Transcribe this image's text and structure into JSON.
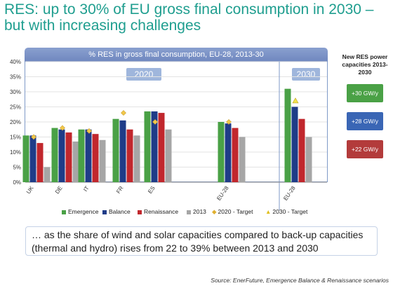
{
  "slide_title": "RES: up to 30% of EU gross final consumption in 2030 – but with increasing challenges",
  "chart_data": {
    "type": "bar",
    "title": "% RES in gross final consumption, EU-28, 2013-30",
    "group_labels": [
      "2020",
      "2030"
    ],
    "categories": [
      "UK",
      "DE",
      "IT",
      "FR",
      "ES",
      "EU-28",
      "EU-28"
    ],
    "series": [
      {
        "name": "Emergence",
        "color": "#4aa146",
        "values": [
          15.5,
          18,
          17.5,
          21,
          23.5,
          20,
          31
        ]
      },
      {
        "name": "Balance",
        "color": "#1f3c88",
        "values": [
          15.5,
          17.5,
          17.5,
          20.5,
          23.5,
          19.5,
          25
        ]
      },
      {
        "name": "Renaissance",
        "color": "#c1272d",
        "values": [
          13,
          16.5,
          16,
          17.5,
          23,
          18,
          21
        ]
      },
      {
        "name": "2013",
        "color": "#a6a6a6",
        "values": [
          5,
          13.5,
          14,
          15.5,
          17.5,
          15,
          15
        ]
      }
    ],
    "markers": [
      {
        "name": "2020 - Target",
        "color": "#f2c84b",
        "values": [
          15,
          18,
          17,
          23,
          20,
          20,
          null
        ]
      },
      {
        "name": "2030 - Target",
        "color": "#f2e24b",
        "values": [
          null,
          null,
          null,
          null,
          null,
          null,
          27
        ]
      }
    ],
    "yticks": [
      "0%",
      "5%",
      "10%",
      "15%",
      "20%",
      "25%",
      "30%",
      "35%",
      "40%"
    ],
    "ylim": [
      0,
      40
    ]
  },
  "side_panel": {
    "title": "New RES power capacities 2013-2030",
    "boxes": [
      "+30 GW/y",
      "+28 GW/y",
      "+22 GW/y"
    ]
  },
  "legend": [
    "Emergence",
    "Balance",
    "Renaissance",
    "2013",
    "2020 - Target",
    "2030 - Target"
  ],
  "callout": "… as the share of wind and solar capacities compared to back-up capacities (thermal and hydro) rises from 22 to 39% between 2013 and 2030",
  "source": "Source: EnerFuture, Emergence Balance & Renaissance scenarios"
}
